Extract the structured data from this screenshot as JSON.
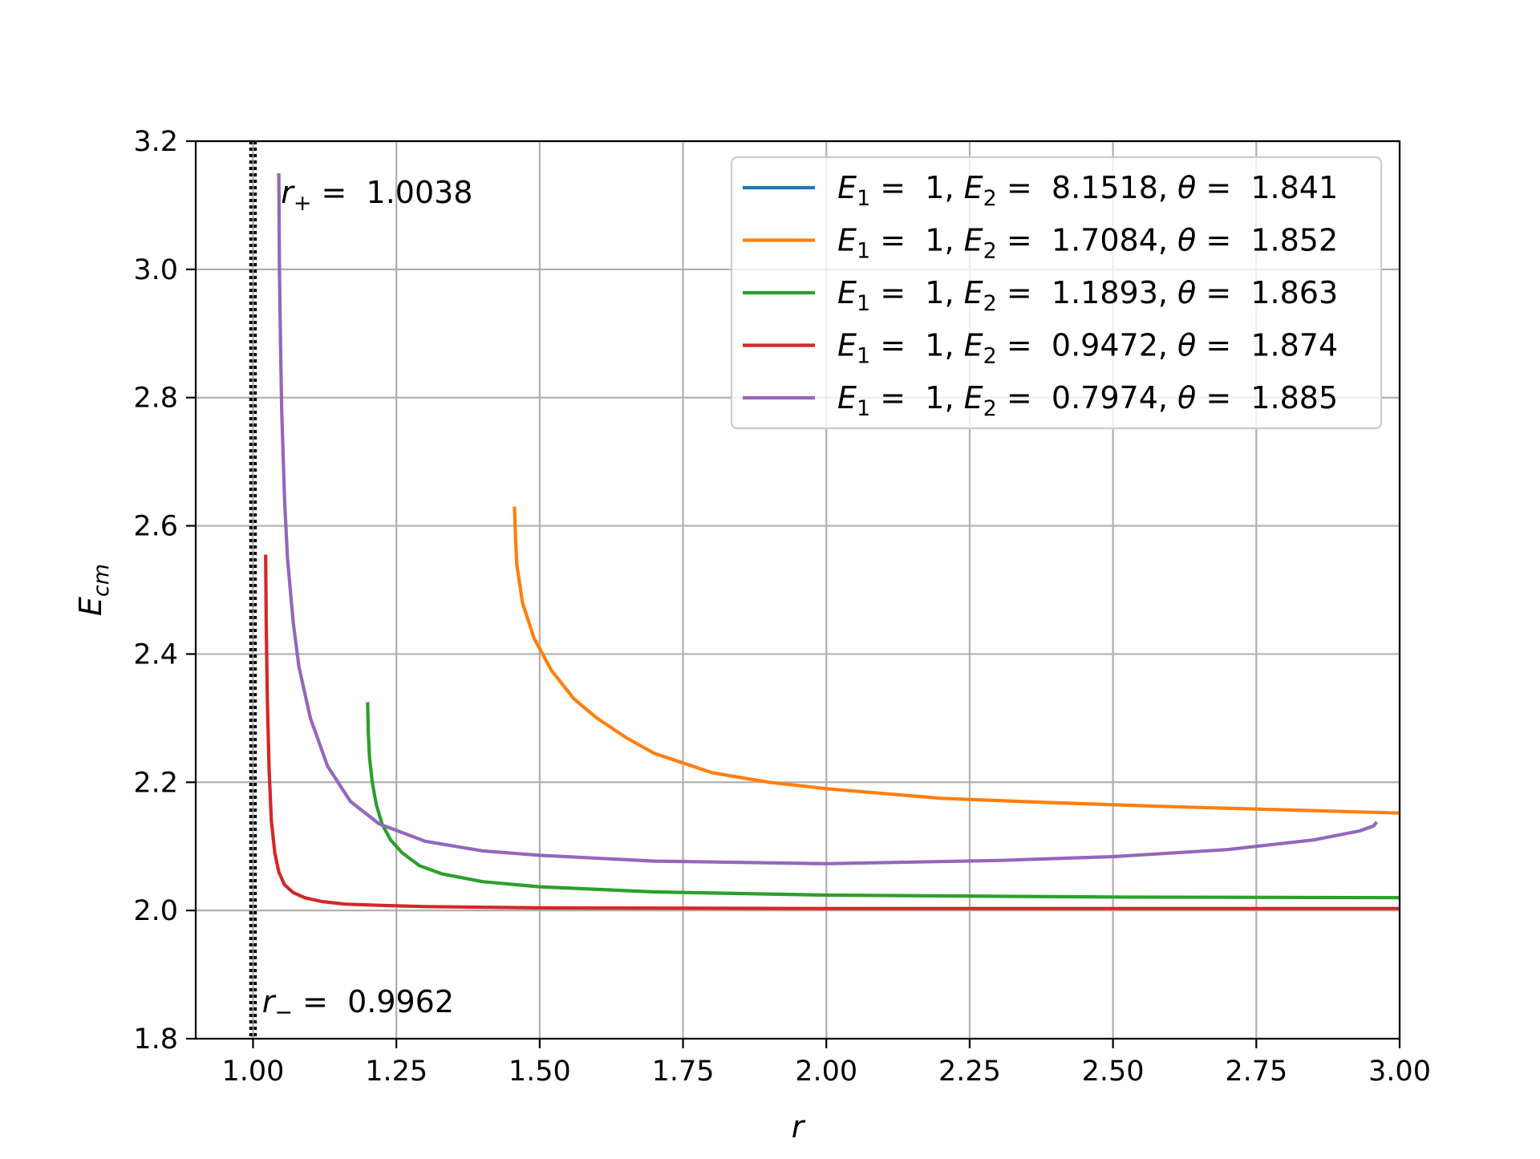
{
  "chart_data": {
    "type": "line",
    "title": "",
    "xlabel": "r",
    "ylabel": "E_cm",
    "xlim": [
      0.9,
      3.0
    ],
    "ylim": [
      1.8,
      3.2
    ],
    "grid": true,
    "legend_position": "top-right",
    "x_ticks": [
      "1.00",
      "1.25",
      "1.50",
      "1.75",
      "2.00",
      "2.25",
      "2.50",
      "2.75",
      "3.00"
    ],
    "y_ticks": [
      "1.8",
      "2.0",
      "2.2",
      "2.4",
      "2.6",
      "2.8",
      "3.0",
      "3.2"
    ],
    "annotations": [
      {
        "label": "r+ = 1.0038",
        "sub": "+",
        "value": "1.0038",
        "x": 1.0038
      },
      {
        "label": "r− = 0.9962",
        "sub": "−",
        "value": "0.9962",
        "x": 0.9962
      }
    ],
    "series": [
      {
        "name": "E1 = 1, E2 = 8.1518, θ = 1.841",
        "E1": "1",
        "E2": "8.1518",
        "theta": "1.841",
        "color": "#1f77b4",
        "x": [],
        "y": []
      },
      {
        "name": "E1 = 1, E2 = 1.7084, θ = 1.852",
        "E1": "1",
        "E2": "1.7084",
        "theta": "1.852",
        "color": "#ff7f0e",
        "x": [
          1.456,
          1.458,
          1.46,
          1.47,
          1.49,
          1.52,
          1.56,
          1.6,
          1.65,
          1.7,
          1.8,
          1.9,
          2.0,
          2.2,
          2.4,
          2.6,
          2.8,
          3.0
        ],
        "y": [
          2.63,
          2.58,
          2.54,
          2.48,
          2.425,
          2.375,
          2.33,
          2.3,
          2.27,
          2.245,
          2.215,
          2.2,
          2.19,
          2.175,
          2.168,
          2.162,
          2.157,
          2.152
        ]
      },
      {
        "name": "E1 = 1, E2 = 1.1893, θ = 1.863",
        "E1": "1",
        "E2": "1.1893",
        "theta": "1.863",
        "color": "#2ca02c",
        "x": [
          1.2,
          1.201,
          1.203,
          1.208,
          1.215,
          1.225,
          1.24,
          1.26,
          1.29,
          1.33,
          1.4,
          1.5,
          1.7,
          2.0,
          2.5,
          3.0
        ],
        "y": [
          2.325,
          2.28,
          2.24,
          2.2,
          2.165,
          2.135,
          2.11,
          2.09,
          2.07,
          2.057,
          2.045,
          2.037,
          2.029,
          2.024,
          2.021,
          2.02
        ]
      },
      {
        "name": "E1 = 1, E2 = 0.9472, θ = 1.874",
        "E1": "1",
        "E2": "0.9472",
        "theta": "1.874",
        "color": "#d62728",
        "x": [
          1.022,
          1.023,
          1.025,
          1.028,
          1.032,
          1.038,
          1.045,
          1.055,
          1.07,
          1.09,
          1.12,
          1.16,
          1.22,
          1.3,
          1.5,
          2.0,
          2.5,
          3.0
        ],
        "y": [
          2.555,
          2.45,
          2.33,
          2.22,
          2.14,
          2.09,
          2.06,
          2.04,
          2.028,
          2.02,
          2.014,
          2.01,
          2.008,
          2.006,
          2.004,
          2.003,
          2.003,
          2.003
        ]
      },
      {
        "name": "E1 = 1, E2 = 0.7974, θ = 1.885",
        "E1": "1",
        "E2": "0.7974",
        "theta": "1.885",
        "color": "#9467bd",
        "x": [
          1.045,
          1.046,
          1.048,
          1.05,
          1.055,
          1.06,
          1.07,
          1.08,
          1.1,
          1.13,
          1.17,
          1.22,
          1.3,
          1.4,
          1.5,
          1.7,
          2.0,
          2.3,
          2.5,
          2.7,
          2.85,
          2.93,
          2.955,
          2.96
        ],
        "y": [
          3.15,
          3.0,
          2.88,
          2.78,
          2.64,
          2.55,
          2.45,
          2.38,
          2.3,
          2.225,
          2.17,
          2.135,
          2.108,
          2.093,
          2.086,
          2.077,
          2.073,
          2.078,
          2.084,
          2.095,
          2.11,
          2.124,
          2.132,
          2.138
        ]
      }
    ]
  }
}
